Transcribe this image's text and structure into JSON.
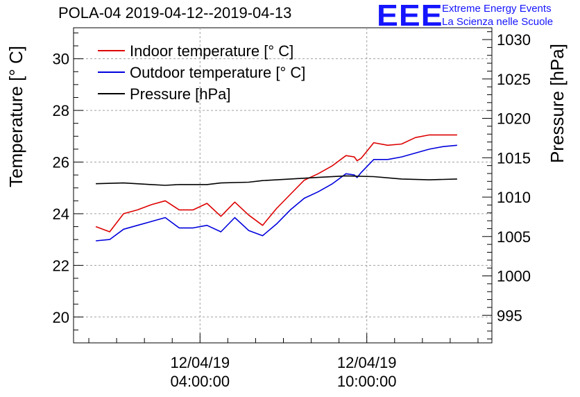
{
  "title": "POLA-04 2019-04-12--2019-04-13",
  "logo": {
    "mark": "EEE",
    "line1": "Extreme Energy Events",
    "line2": "La Scienza nelle Scuole",
    "color": "#1515ff"
  },
  "chart_data": {
    "type": "line",
    "title": "POLA-04 2019-04-12--2019-04-13",
    "ylabel": "Temperature [° C]",
    "y2label": "Pressure [hPa]",
    "xlabel": "",
    "x_unit": "hours since 12/04/19 00:00:00",
    "xlim": [
      -0.55,
      14.5
    ],
    "ylim": [
      19.0,
      31.2
    ],
    "y2lim": [
      991.5,
      1031.5
    ],
    "yticks": [
      20,
      22,
      24,
      26,
      28,
      30
    ],
    "y2ticks": [
      995,
      1000,
      1005,
      1010,
      1015,
      1020,
      1025,
      1030
    ],
    "xticks": [
      {
        "x": 4,
        "label_date": "12/04/19",
        "label_time": "04:00:00"
      },
      {
        "x": 10,
        "label_date": "12/04/19",
        "label_time": "10:00:00"
      }
    ],
    "grid": true,
    "legend_position": "top-left",
    "series": [
      {
        "name": "Indoor temperature [° C]",
        "axis": "left",
        "color": "#dd0000",
        "x": [
          0.25,
          0.75,
          1.25,
          1.75,
          2.25,
          2.75,
          3.25,
          3.75,
          4.25,
          4.75,
          5.25,
          5.75,
          6.25,
          6.75,
          7.25,
          7.75,
          8.25,
          8.75,
          9.25,
          9.55,
          9.65,
          9.8,
          9.95,
          10.25,
          10.75,
          11.25,
          11.75,
          12.25,
          12.75,
          13.25
        ],
        "values": [
          23.5,
          23.3,
          24.0,
          24.15,
          24.35,
          24.5,
          24.15,
          24.15,
          24.4,
          23.9,
          24.45,
          23.95,
          23.55,
          24.2,
          24.75,
          25.3,
          25.55,
          25.85,
          26.25,
          26.2,
          26.05,
          26.15,
          26.35,
          26.75,
          26.65,
          26.7,
          26.95,
          27.05,
          27.05,
          27.05
        ]
      },
      {
        "name": "Outdoor temperature [° C]",
        "axis": "left",
        "color": "#0000dd",
        "x": [
          0.25,
          0.75,
          1.25,
          1.75,
          2.25,
          2.75,
          3.25,
          3.75,
          4.25,
          4.75,
          5.25,
          5.75,
          6.25,
          6.75,
          7.25,
          7.75,
          8.25,
          8.75,
          9.25,
          9.55,
          9.65,
          9.8,
          10.25,
          10.75,
          11.25,
          11.75,
          12.25,
          12.75,
          13.25
        ],
        "values": [
          22.95,
          23.0,
          23.4,
          23.55,
          23.7,
          23.85,
          23.45,
          23.45,
          23.55,
          23.3,
          23.85,
          23.35,
          23.15,
          23.6,
          24.15,
          24.6,
          24.85,
          25.15,
          25.55,
          25.5,
          25.4,
          25.6,
          26.1,
          26.1,
          26.2,
          26.35,
          26.5,
          26.6,
          26.65
        ]
      },
      {
        "name": "Pressure [hPa]",
        "axis": "right",
        "color": "#000000",
        "x": [
          0.25,
          1.25,
          2.25,
          2.75,
          3.25,
          4.25,
          4.75,
          5.75,
          6.25,
          7.25,
          8.25,
          9.25,
          10.25,
          11.25,
          12.25,
          13.25
        ],
        "values": [
          1011.7,
          1011.8,
          1011.6,
          1011.5,
          1011.6,
          1011.6,
          1011.8,
          1011.9,
          1012.1,
          1012.3,
          1012.5,
          1012.7,
          1012.6,
          1012.3,
          1012.2,
          1012.3
        ]
      }
    ]
  }
}
